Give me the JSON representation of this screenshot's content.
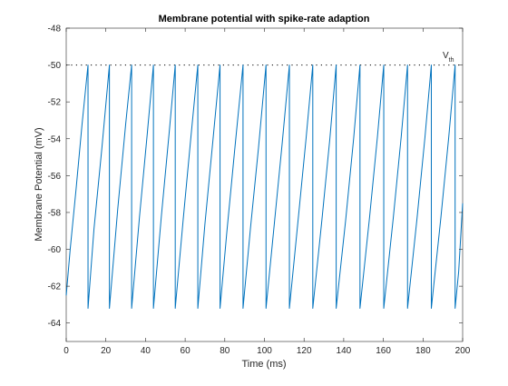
{
  "chart_data": {
    "type": "line",
    "title": "Membrane potential  with spike-rate adaption",
    "xlabel": "Time (ms)",
    "ylabel": "Membrane Potential (mV)",
    "xlim": [
      0,
      200
    ],
    "ylim": [
      -65,
      -48
    ],
    "xticks": [
      0,
      20,
      40,
      60,
      80,
      100,
      120,
      140,
      160,
      180,
      200
    ],
    "yticks": [
      -64,
      -62,
      -60,
      -58,
      -56,
      -54,
      -52,
      -50,
      -48
    ],
    "grid": false,
    "legend": "none",
    "series": [
      {
        "color": "#0072BD",
        "reset_value": -63.2,
        "threshold": -50,
        "spike_times": [
          11.0,
          21.8,
          33.0,
          44.0,
          55.0,
          66.4,
          77.6,
          89.2,
          100.8,
          112.6,
          124.4,
          136.2,
          148.2,
          160.2,
          172.2,
          184.2,
          196.2
        ],
        "points": [
          [
            0,
            -62.5
          ],
          [
            2,
            -60.0
          ],
          [
            5,
            -56.7
          ],
          [
            8,
            -53.2
          ],
          [
            11.0,
            -50.0
          ],
          [
            11.0,
            -63.2
          ],
          [
            14,
            -58.9
          ],
          [
            18,
            -54.5
          ],
          [
            21.8,
            -50.0
          ],
          [
            21.8,
            -63.2
          ],
          [
            26,
            -57.8
          ],
          [
            30,
            -53.2
          ],
          [
            33.0,
            -50.0
          ],
          [
            33.0,
            -63.2
          ],
          [
            37,
            -58.2
          ],
          [
            41,
            -53.6
          ],
          [
            44.0,
            -50.0
          ],
          [
            44.0,
            -63.2
          ],
          [
            48,
            -58.2
          ],
          [
            52,
            -53.6
          ],
          [
            55.0,
            -50.0
          ],
          [
            55.0,
            -63.2
          ],
          [
            59,
            -58.4
          ],
          [
            63,
            -53.8
          ],
          [
            66.4,
            -50.0
          ],
          [
            66.4,
            -63.2
          ],
          [
            70,
            -58.6
          ],
          [
            74,
            -54.1
          ],
          [
            77.6,
            -50.0
          ],
          [
            77.6,
            -63.2
          ],
          [
            81,
            -59.1
          ],
          [
            85,
            -54.6
          ],
          [
            89.2,
            -50.0
          ],
          [
            89.2,
            -63.2
          ],
          [
            93,
            -58.8
          ],
          [
            97,
            -54.5
          ],
          [
            100.8,
            -50.0
          ],
          [
            100.8,
            -63.2
          ],
          [
            105,
            -58.6
          ],
          [
            109,
            -54.2
          ],
          [
            112.6,
            -50.0
          ],
          [
            112.6,
            -63.2
          ],
          [
            117,
            -58.4
          ],
          [
            121,
            -54.0
          ],
          [
            124.4,
            -50.0
          ],
          [
            124.4,
            -63.2
          ],
          [
            129,
            -58.4
          ],
          [
            133,
            -54.0
          ],
          [
            136.2,
            -50.0
          ],
          [
            136.2,
            -63.2
          ],
          [
            141,
            -58.4
          ],
          [
            145,
            -54.0
          ],
          [
            148.2,
            -50.0
          ],
          [
            148.2,
            -63.2
          ],
          [
            153,
            -58.3
          ],
          [
            157,
            -53.9
          ],
          [
            160.2,
            -50.0
          ],
          [
            160.2,
            -63.2
          ],
          [
            165,
            -58.3
          ],
          [
            169,
            -53.9
          ],
          [
            172.2,
            -50.0
          ],
          [
            172.2,
            -63.2
          ],
          [
            177,
            -58.3
          ],
          [
            181,
            -53.9
          ],
          [
            184.2,
            -50.0
          ],
          [
            184.2,
            -63.2
          ],
          [
            189,
            -58.3
          ],
          [
            193,
            -53.9
          ],
          [
            196.2,
            -50.0
          ],
          [
            196.2,
            -63.2
          ],
          [
            198,
            -61.2
          ],
          [
            200,
            -57.5
          ]
        ]
      }
    ],
    "threshold_line": {
      "y": -50,
      "style": "dotted",
      "label_main": "V",
      "label_sub": "th"
    }
  }
}
